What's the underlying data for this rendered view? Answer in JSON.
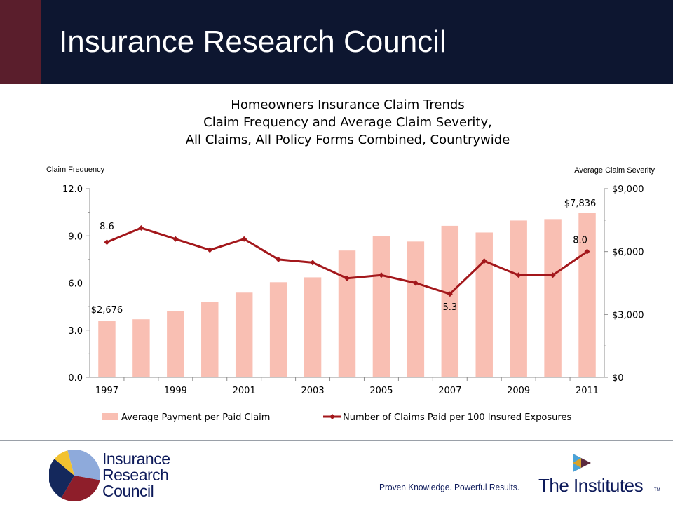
{
  "header": {
    "title": "Insurance Research Council"
  },
  "chart_data": {
    "type": "bar+line",
    "title_lines": [
      "Homeowners Insurance Claim Trends",
      "Claim Frequency and Average Claim Severity,",
      "All Claims, All Policy Forms Combined, Countrywide"
    ],
    "y_left_title": "Claim Frequency",
    "y_right_title": "Average Claim Severity",
    "x_ticks": [
      "1997",
      "1999",
      "2001",
      "2003",
      "2005",
      "2007",
      "2009",
      "2011"
    ],
    "y_left_ticks": [
      "12.0",
      "9.0",
      "6.0",
      "3.0",
      "0.0"
    ],
    "y_right_ticks": [
      "$9,000",
      "$6,000",
      "$3,000",
      "$0"
    ],
    "y_left_range": [
      0,
      12
    ],
    "y_right_range": [
      0,
      9000
    ],
    "categories": [
      "1997",
      "1998",
      "1999",
      "2000",
      "2001",
      "2002",
      "2003",
      "2004",
      "2005",
      "2006",
      "2007",
      "2008",
      "2009",
      "2010",
      "2011"
    ],
    "series": [
      {
        "name": "Average Payment per Paid Claim",
        "type": "bar",
        "axis": "right",
        "color": "#f9bfb3",
        "values": [
          2676,
          2770,
          3150,
          3600,
          4040,
          4540,
          4770,
          6050,
          6740,
          6480,
          7230,
          6910,
          7480,
          7550,
          7836
        ]
      },
      {
        "name": "Number of Claims Paid per 100 Insured Exposures",
        "type": "line",
        "axis": "left",
        "color": "#a3171b",
        "values": [
          8.6,
          9.5,
          8.8,
          8.1,
          8.8,
          7.5,
          7.3,
          6.3,
          6.5,
          6.0,
          5.3,
          7.4,
          6.5,
          6.5,
          8.0
        ]
      }
    ],
    "data_labels": [
      {
        "series": 1,
        "index": 0,
        "text": "8.6"
      },
      {
        "series": 0,
        "index": 0,
        "text": "$2,676"
      },
      {
        "series": 1,
        "index": 10,
        "text": "5.3"
      },
      {
        "series": 1,
        "index": 14,
        "text": "8.0"
      },
      {
        "series": 0,
        "index": 14,
        "text": "$7,836"
      }
    ],
    "legend_position": "bottom"
  },
  "footer": {
    "irc_logo_lines": [
      "Insurance",
      "Research",
      "Council"
    ],
    "tagline": "Proven Knowledge. Powerful Results.",
    "institutes_name": "The Institutes",
    "trademark": "TM"
  }
}
